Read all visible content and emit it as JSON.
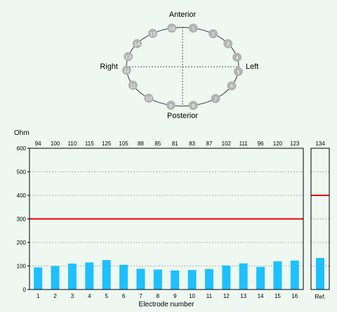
{
  "head_diagram": {
    "labels": {
      "anterior": "Anterior",
      "posterior": "Posterior",
      "left": "Left",
      "right": "Right"
    },
    "electrodes": [
      {
        "label": "1",
        "angle_deg": 79
      },
      {
        "label": "2",
        "angle_deg": 57
      },
      {
        "label": "3",
        "angle_deg": 36
      },
      {
        "label": "4",
        "angle_deg": 14
      },
      {
        "label": "5",
        "angle_deg": -7
      },
      {
        "label": "6",
        "angle_deg": -29
      },
      {
        "label": "7",
        "angle_deg": -54
      },
      {
        "label": "8",
        "angle_deg": -79
      },
      {
        "label": "9",
        "angle_deg": -102
      },
      {
        "label": "10",
        "angle_deg": -127
      },
      {
        "label": "11",
        "angle_deg": -152
      },
      {
        "label": "12",
        "angle_deg": -175
      },
      {
        "label": "13",
        "angle_deg": 165
      },
      {
        "label": "14",
        "angle_deg": 144
      },
      {
        "label": "15",
        "angle_deg": 122
      },
      {
        "label": "16",
        "angle_deg": 101
      }
    ],
    "colors": {
      "electrode_fill": "#b3b3b3",
      "electrode_text": "#ffffff",
      "outline": "#333333"
    }
  },
  "chart_data": {
    "type": "bar",
    "ylabel": "Ohm",
    "xlabel": "Electrode number",
    "ylim": [
      0,
      600
    ],
    "yticks": [
      0,
      100,
      200,
      300,
      400,
      500,
      600
    ],
    "grid": true,
    "categories": [
      "1",
      "2",
      "3",
      "4",
      "5",
      "6",
      "7",
      "8",
      "9",
      "10",
      "11",
      "12",
      "13",
      "14",
      "15",
      "16"
    ],
    "values": [
      94,
      100,
      110,
      115,
      125,
      105,
      88,
      85,
      81,
      83,
      87,
      102,
      111,
      96,
      120,
      123
    ],
    "threshold": 300,
    "reference": {
      "category": "Ref.",
      "value": 134,
      "threshold": 400
    },
    "colors": {
      "bar": "#1ec0ff",
      "threshold": "#e60000",
      "grid": "#999999",
      "axis": "#000000"
    }
  }
}
